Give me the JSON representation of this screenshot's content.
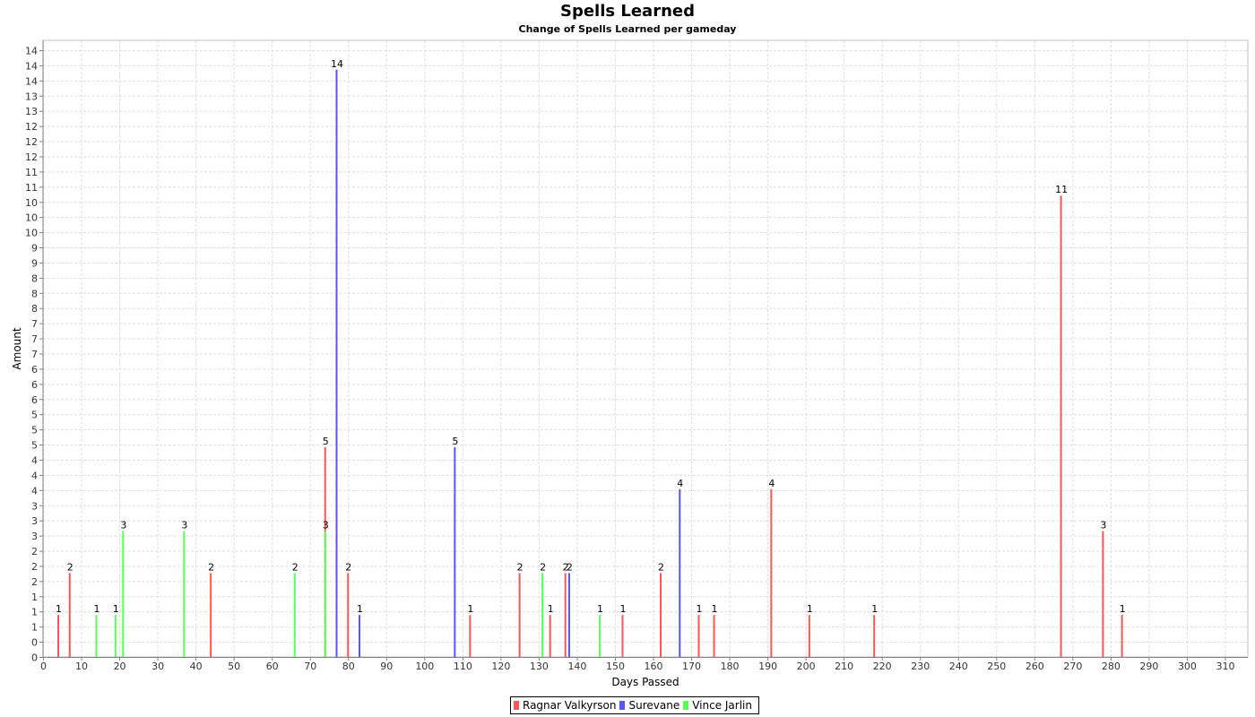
{
  "chart_data": {
    "type": "bar",
    "title": "Spells Learned",
    "subtitle": "Change of Spells Learned per gameday",
    "xlabel": "Days Passed",
    "ylabel": "Amount",
    "xlim": [
      0,
      316
    ],
    "ylim": [
      0,
      14.7
    ],
    "x_ticks": [
      0,
      10,
      20,
      30,
      40,
      50,
      60,
      70,
      80,
      90,
      100,
      110,
      120,
      130,
      140,
      150,
      160,
      170,
      180,
      190,
      200,
      210,
      220,
      230,
      240,
      250,
      260,
      270,
      280,
      290,
      300,
      310
    ],
    "y_tick_labels": [
      "0",
      "0",
      "1",
      "1",
      "1",
      "2",
      "2",
      "2",
      "3",
      "3",
      "3",
      "4",
      "4",
      "4",
      "5",
      "5",
      "5",
      "6",
      "6",
      "6",
      "7",
      "7",
      "7",
      "8",
      "8",
      "8",
      "9",
      "9",
      "10",
      "10",
      "10",
      "11",
      "11",
      "12",
      "12",
      "12",
      "13",
      "13",
      "14",
      "14",
      "14"
    ],
    "grid": true,
    "legend_position": "bottom",
    "series": [
      {
        "name": "Ragnar Valkyrson",
        "color": "#ff5555",
        "points": [
          {
            "x": 4,
            "y": 1
          },
          {
            "x": 7,
            "y": 2
          },
          {
            "x": 44,
            "y": 2
          },
          {
            "x": 74,
            "y": 5
          },
          {
            "x": 80,
            "y": 2
          },
          {
            "x": 112,
            "y": 1
          },
          {
            "x": 125,
            "y": 2
          },
          {
            "x": 133,
            "y": 1
          },
          {
            "x": 137,
            "y": 2
          },
          {
            "x": 152,
            "y": 1
          },
          {
            "x": 162,
            "y": 2
          },
          {
            "x": 172,
            "y": 1
          },
          {
            "x": 176,
            "y": 1
          },
          {
            "x": 191,
            "y": 4
          },
          {
            "x": 201,
            "y": 1
          },
          {
            "x": 218,
            "y": 1
          },
          {
            "x": 267,
            "y": 11
          },
          {
            "x": 278,
            "y": 3
          },
          {
            "x": 283,
            "y": 1
          }
        ]
      },
      {
        "name": "Surevane",
        "color": "#5555ff",
        "points": [
          {
            "x": 77,
            "y": 14
          },
          {
            "x": 83,
            "y": 1
          },
          {
            "x": 108,
            "y": 5
          },
          {
            "x": 138,
            "y": 2
          },
          {
            "x": 167,
            "y": 4
          }
        ]
      },
      {
        "name": "Vince Jarlin",
        "color": "#55ff55",
        "points": [
          {
            "x": 14,
            "y": 1
          },
          {
            "x": 19,
            "y": 1
          },
          {
            "x": 21,
            "y": 3
          },
          {
            "x": 37,
            "y": 3
          },
          {
            "x": 66,
            "y": 2
          },
          {
            "x": 74,
            "y": 3
          },
          {
            "x": 131,
            "y": 2
          },
          {
            "x": 146,
            "y": 1
          }
        ]
      }
    ]
  }
}
